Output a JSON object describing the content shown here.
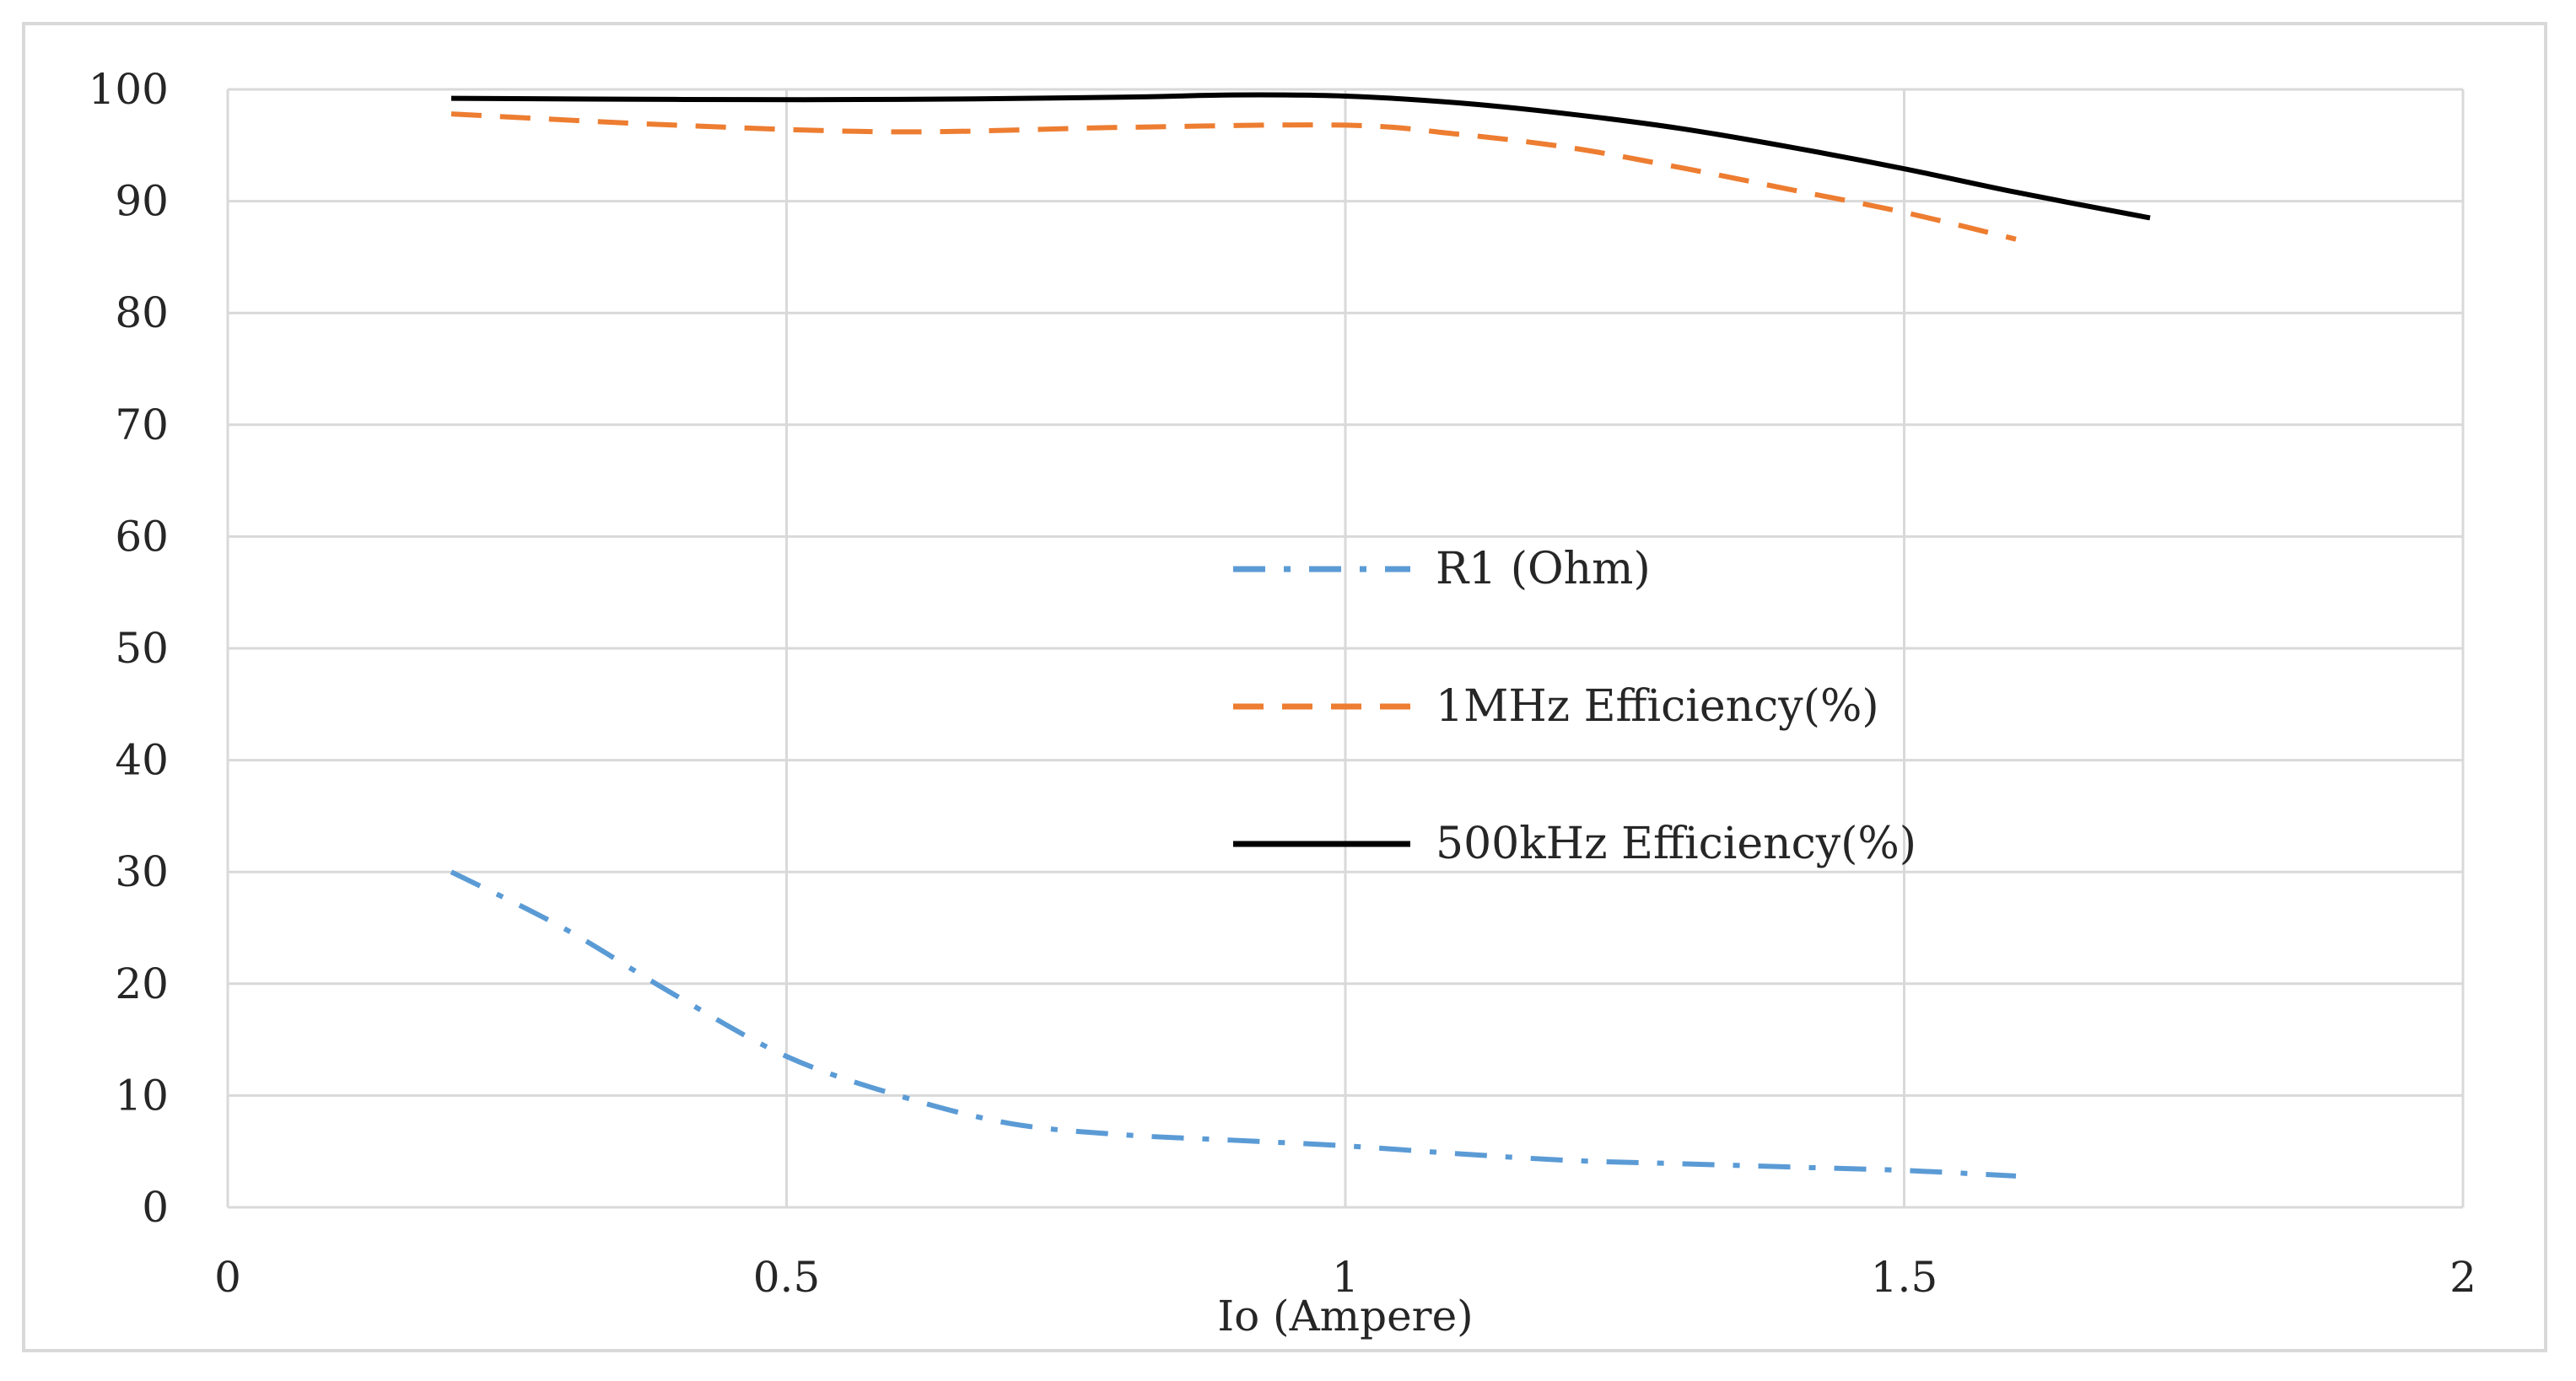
{
  "chart_data": {
    "type": "line",
    "title": "",
    "xlabel": "Io (Ampere)",
    "ylabel": "",
    "xlim": [
      0,
      2
    ],
    "ylim": [
      0,
      100
    ],
    "x_ticks": [
      "0",
      "0.5",
      "1",
      "1.5",
      "2"
    ],
    "y_ticks": [
      "0",
      "10",
      "20",
      "30",
      "40",
      "50",
      "60",
      "70",
      "80",
      "90",
      "100"
    ],
    "grid": true,
    "legend_position": "center",
    "series": [
      {
        "name": "R1 (Ohm)",
        "color": "#5b9bd5",
        "style": "dash-dot",
        "x": [
          0.2,
          0.3,
          0.4,
          0.5,
          0.6,
          0.7,
          0.8,
          0.9,
          1.0,
          1.1,
          1.2,
          1.3,
          1.4,
          1.5,
          1.6
        ],
        "y": [
          30,
          25,
          19,
          13.5,
          10,
          7.5,
          6.5,
          6,
          5.5,
          4.8,
          4.2,
          3.9,
          3.6,
          3.3,
          2.8
        ]
      },
      {
        "name": "1MHz Efficiency(%)",
        "color": "#ed7d31",
        "style": "dashed",
        "x": [
          0.2,
          0.4,
          0.6,
          0.8,
          1.0,
          1.1,
          1.2,
          1.3,
          1.4,
          1.5,
          1.6
        ],
        "y": [
          97.8,
          96.8,
          96.2,
          96.6,
          96.8,
          96.0,
          94.8,
          93.0,
          91.0,
          89.0,
          86.6
        ]
      },
      {
        "name": "500kHz Efficiency(%)",
        "color": "#000000",
        "style": "solid",
        "x": [
          0.2,
          0.4,
          0.6,
          0.8,
          0.9,
          1.0,
          1.1,
          1.2,
          1.3,
          1.4,
          1.5,
          1.6,
          1.72
        ],
        "y": [
          99.2,
          99.1,
          99.1,
          99.3,
          99.5,
          99.4,
          98.8,
          97.8,
          96.5,
          94.8,
          92.9,
          90.8,
          88.5
        ]
      }
    ]
  }
}
